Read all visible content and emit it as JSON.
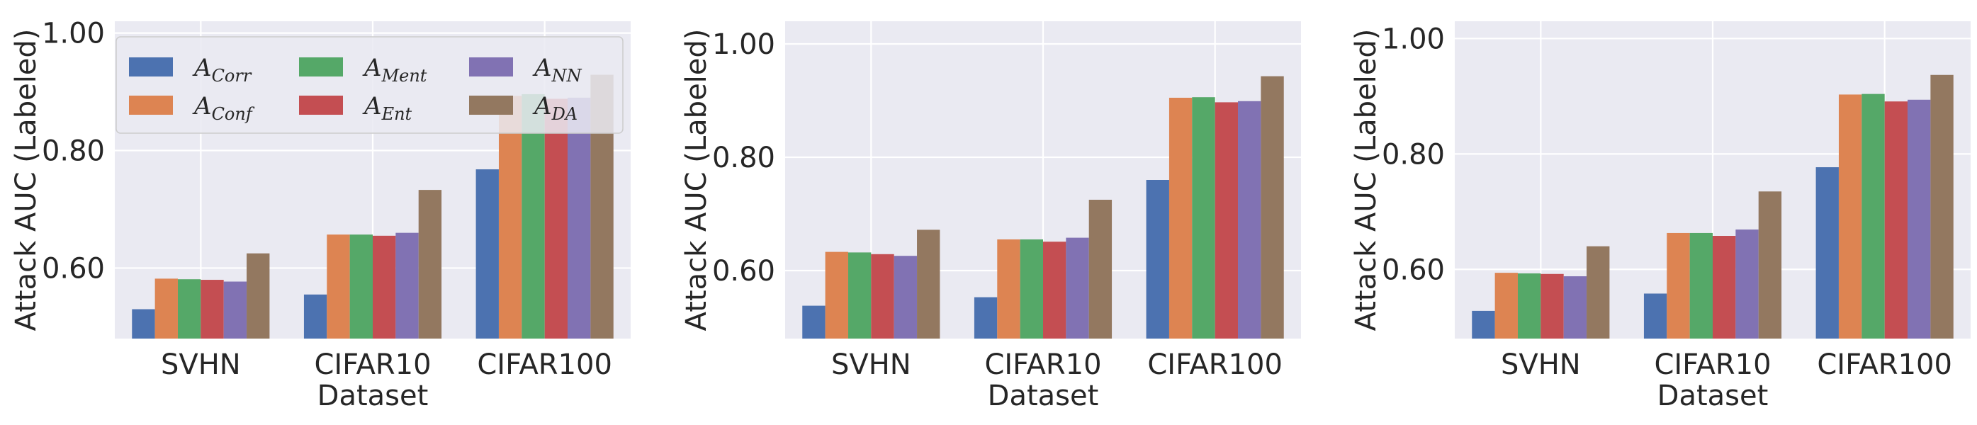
{
  "chart_data": [
    {
      "type": "bar",
      "title": "",
      "xlabel": "Dataset",
      "ylabel": "Attack AUC (Labeled)",
      "ylim": [
        0.48,
        1.02
      ],
      "yticks": [
        "0.60",
        "0.80",
        "1.00"
      ],
      "categories": [
        "SVHN",
        "CIFAR10",
        "CIFAR100"
      ],
      "legend": "top-left",
      "series": [
        {
          "name": "A_Corr",
          "sub": "Corr",
          "color": "#4c72b0",
          "values": [
            0.53,
            0.555,
            0.768
          ]
        },
        {
          "name": "A_Conf",
          "sub": "Conf",
          "color": "#dd8452",
          "values": [
            0.582,
            0.657,
            0.893
          ]
        },
        {
          "name": "A_Ment",
          "sub": "Ment",
          "color": "#55a868",
          "values": [
            0.581,
            0.657,
            0.896
          ]
        },
        {
          "name": "A_Ent",
          "sub": "Ent",
          "color": "#c44e52",
          "values": [
            0.58,
            0.655,
            0.888
          ]
        },
        {
          "name": "A_NN",
          "sub": "NN",
          "color": "#8172b3",
          "values": [
            0.577,
            0.66,
            0.89
          ]
        },
        {
          "name": "A_DA",
          "sub": "DA",
          "color": "#937860",
          "values": [
            0.625,
            0.733,
            0.929
          ]
        }
      ]
    },
    {
      "type": "bar",
      "title": "",
      "xlabel": "Dataset",
      "ylabel": "Attack AUC (Labeled)",
      "ylim": [
        0.48,
        1.04
      ],
      "yticks": [
        "0.60",
        "0.80",
        "1.00"
      ],
      "categories": [
        "SVHN",
        "CIFAR10",
        "CIFAR100"
      ],
      "series": [
        {
          "name": "A_Corr",
          "color": "#4c72b0",
          "values": [
            0.538,
            0.553,
            0.76
          ]
        },
        {
          "name": "A_Conf",
          "color": "#dd8452",
          "values": [
            0.633,
            0.655,
            0.905
          ]
        },
        {
          "name": "A_Ment",
          "color": "#55a868",
          "values": [
            0.632,
            0.655,
            0.906
          ]
        },
        {
          "name": "A_Ent",
          "color": "#c44e52",
          "values": [
            0.629,
            0.651,
            0.897
          ]
        },
        {
          "name": "A_NN",
          "color": "#8172b3",
          "values": [
            0.626,
            0.658,
            0.899
          ]
        },
        {
          "name": "A_DA",
          "color": "#937860",
          "values": [
            0.672,
            0.725,
            0.943
          ]
        }
      ]
    },
    {
      "type": "bar",
      "title": "",
      "xlabel": "Dataset",
      "ylabel": "Attack AUC (Labeled)",
      "ylim": [
        0.48,
        1.03
      ],
      "yticks": [
        "0.60",
        "0.80",
        "1.00"
      ],
      "categories": [
        "SVHN",
        "CIFAR10",
        "CIFAR100"
      ],
      "series": [
        {
          "name": "A_Corr",
          "color": "#4c72b0",
          "values": [
            0.528,
            0.558,
            0.777
          ]
        },
        {
          "name": "A_Conf",
          "color": "#dd8452",
          "values": [
            0.594,
            0.663,
            0.903
          ]
        },
        {
          "name": "A_Ment",
          "color": "#55a868",
          "values": [
            0.593,
            0.663,
            0.904
          ]
        },
        {
          "name": "A_Ent",
          "color": "#c44e52",
          "values": [
            0.592,
            0.658,
            0.891
          ]
        },
        {
          "name": "A_NN",
          "color": "#8172b3",
          "values": [
            0.588,
            0.669,
            0.894
          ]
        },
        {
          "name": "A_DA",
          "color": "#937860",
          "values": [
            0.64,
            0.735,
            0.937
          ]
        }
      ]
    }
  ]
}
